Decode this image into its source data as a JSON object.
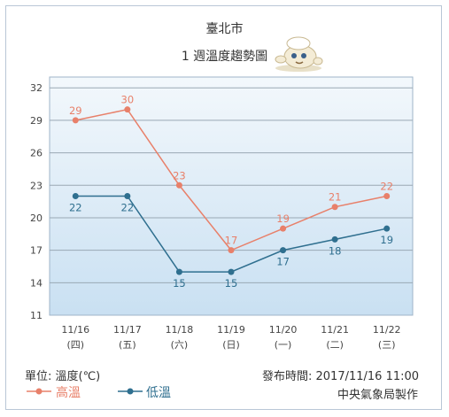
{
  "header": {
    "title": "臺北市",
    "subtitle": "1 週溫度趨勢圖",
    "mascot_icon": "mascot-chef-icon"
  },
  "chart_data": {
    "type": "line",
    "categories": [
      "11/16",
      "11/17",
      "11/18",
      "11/19",
      "11/20",
      "11/21",
      "11/22"
    ],
    "weekdays": [
      "(四)",
      "(五)",
      "(六)",
      "(日)",
      "(一)",
      "(二)",
      "(三)"
    ],
    "series": [
      {
        "name": "高溫",
        "color": "#e8806a",
        "values": [
          29,
          30,
          23,
          17,
          19,
          21,
          22
        ]
      },
      {
        "name": "低溫",
        "color": "#2f6f8f",
        "values": [
          22,
          22,
          15,
          15,
          17,
          18,
          19
        ]
      }
    ],
    "ylim": [
      11,
      33
    ],
    "yticks": [
      11,
      14,
      17,
      20,
      23,
      26,
      29,
      32
    ],
    "grid": true,
    "legend_position": "bottom-left"
  },
  "footer": {
    "unit_label": "單位: 溫度(℃)",
    "publish_label": "發布時間: 2017/11/16  11:00",
    "producer": "中央氣象局製作"
  }
}
